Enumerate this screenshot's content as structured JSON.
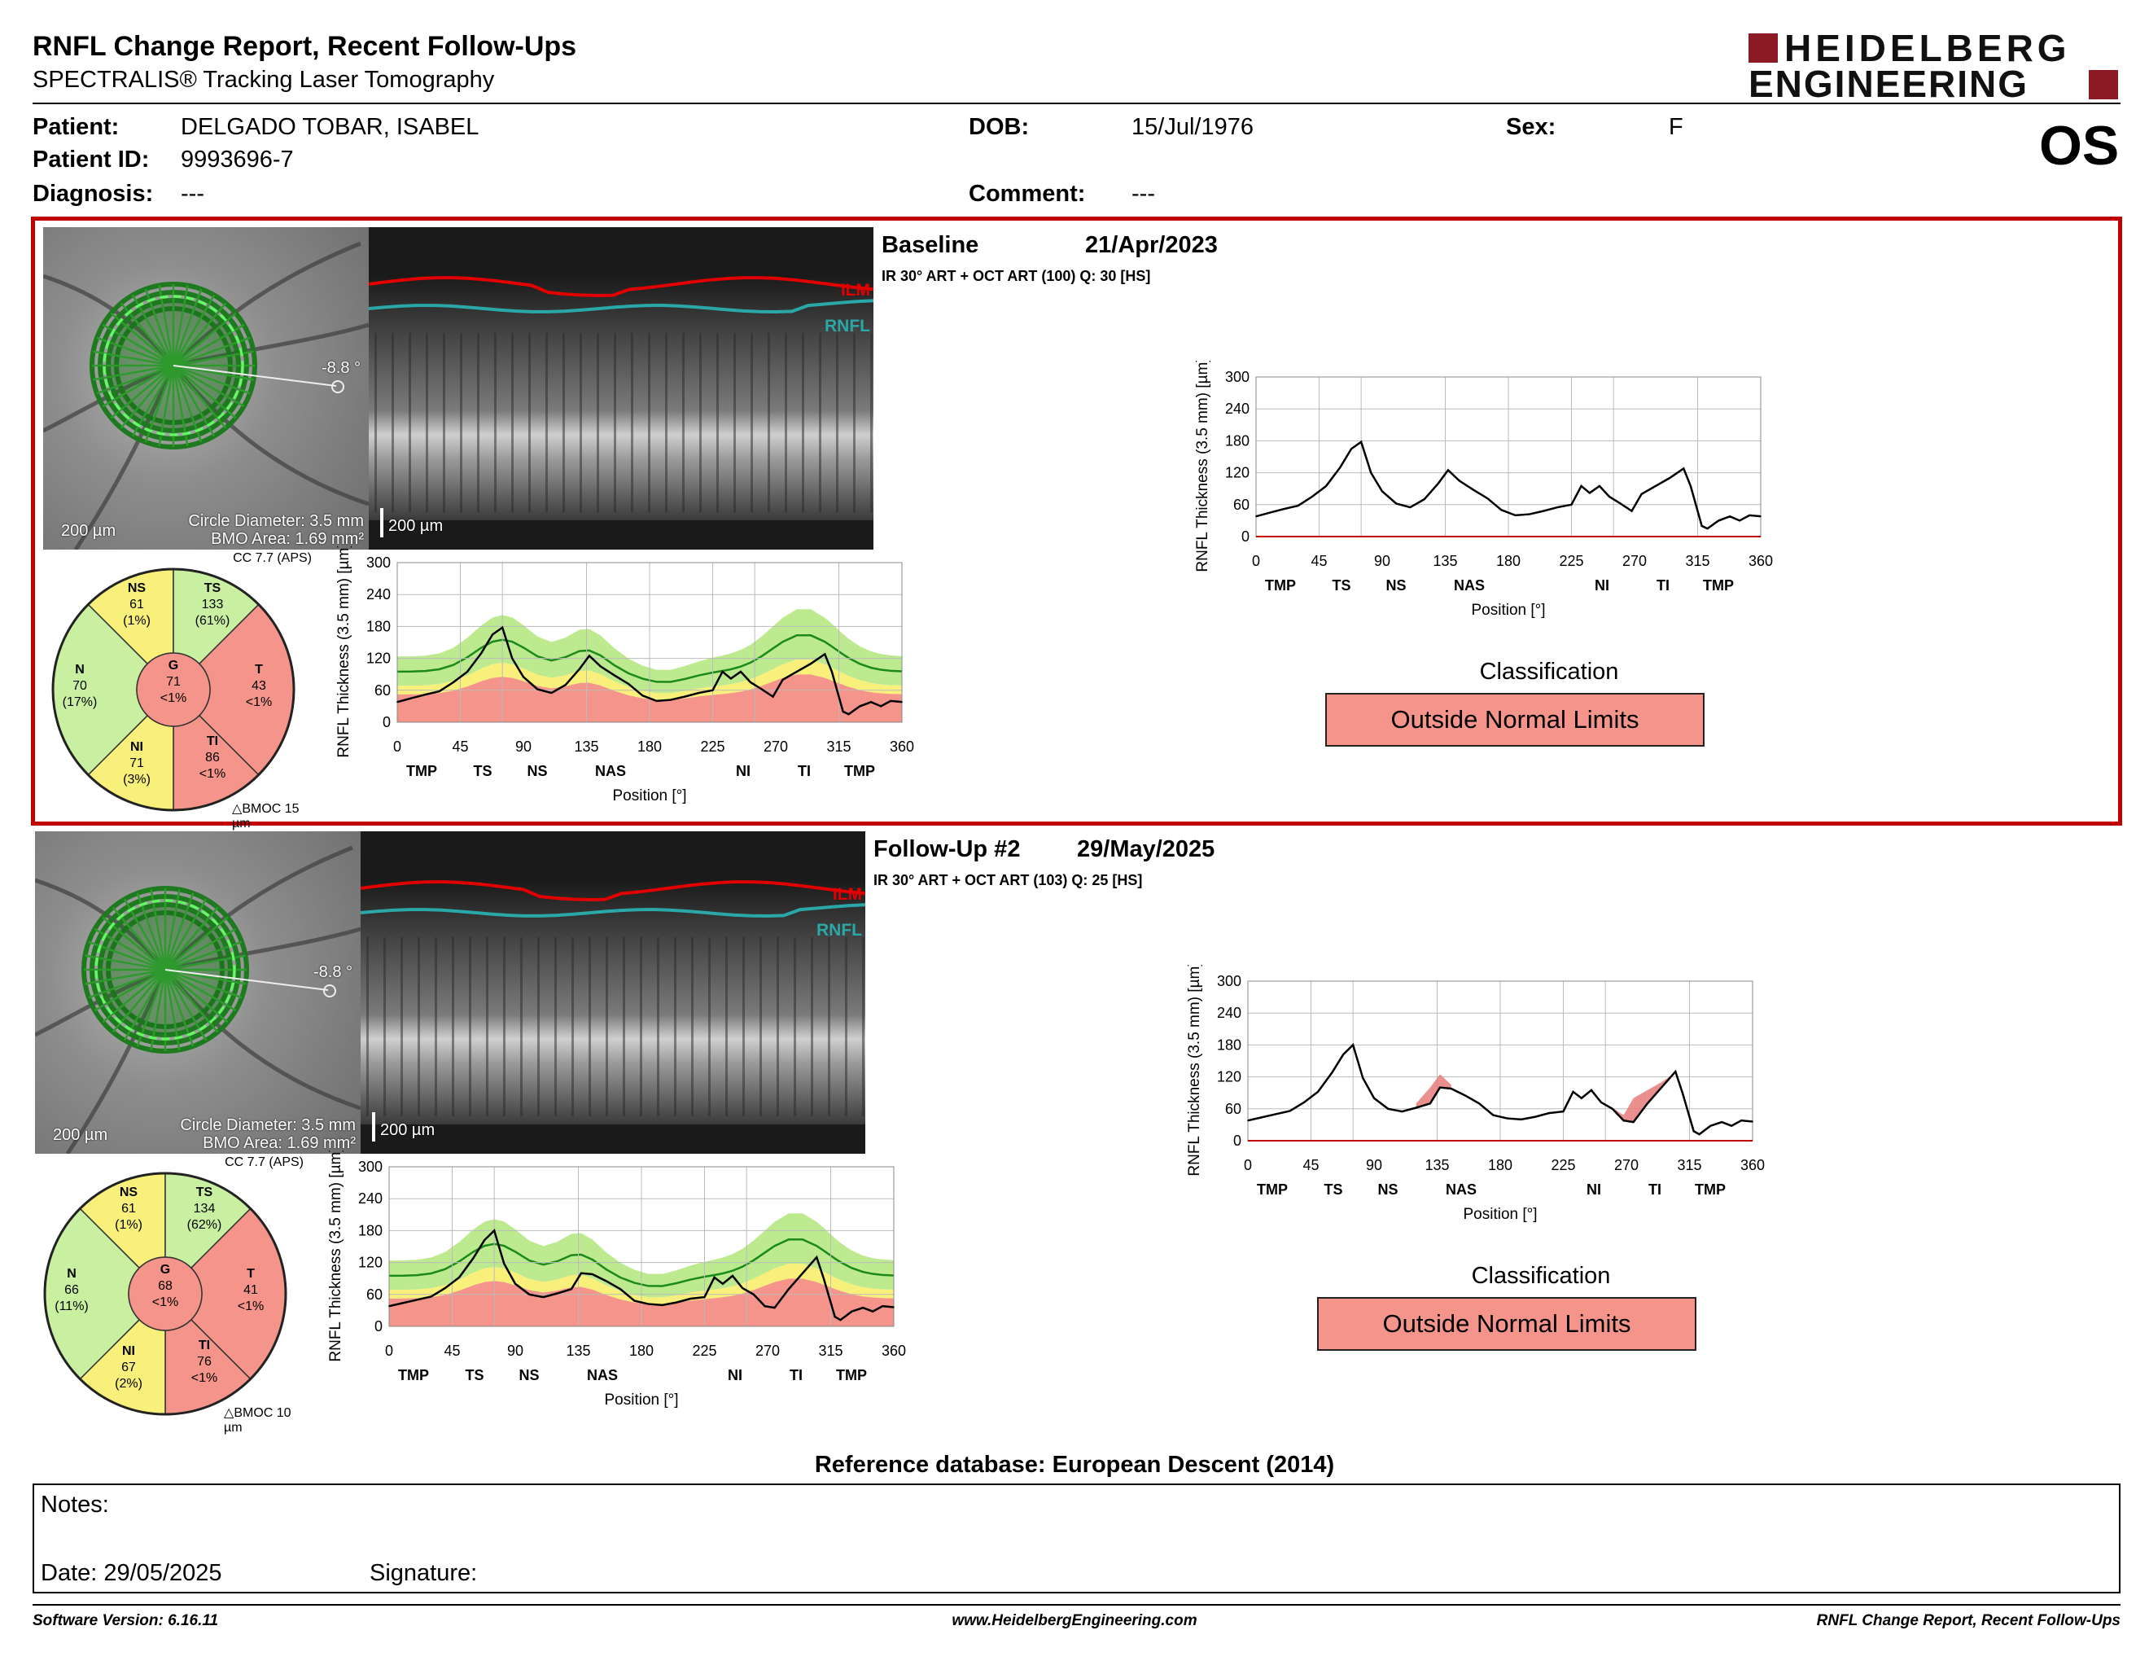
{
  "report": {
    "title": "RNFL Change Report, Recent Follow-Ups",
    "subtitle": "SPECTRALIS® Tracking Laser Tomography",
    "logo_line1": "HEIDELBERG",
    "logo_line2": "ENGINEERING",
    "eye": "OS"
  },
  "patient": {
    "name_label": "Patient:",
    "name": "DELGADO TOBAR, ISABEL",
    "id_label": "Patient ID:",
    "id": "9993696-7",
    "diagnosis_label": "Diagnosis:",
    "diagnosis": "---",
    "dob_label": "DOB:",
    "dob": "15/Jul/1976",
    "comment_label": "Comment:",
    "comment": "---",
    "sex_label": "Sex:",
    "sex": "F"
  },
  "exams": [
    {
      "label": "Baseline",
      "date": "21/Apr/2023",
      "protocol": "IR 30° ART + OCT ART (100) Q: 30 [HS]",
      "angle": "-8.8 °",
      "scale": "200 µm",
      "circle_diameter": "Circle Diameter: 3.5 mm",
      "bmo_area": "BMO Area: 1.69 mm²",
      "cc": "CC 7.7 (APS)",
      "bmoc": "BMOC 15 µm",
      "sectors": {
        "NS": {
          "label": "NS",
          "value": "61",
          "pct": "(1%)"
        },
        "TS": {
          "label": "TS",
          "value": "133",
          "pct": "(61%)"
        },
        "N": {
          "label": "N",
          "value": "70",
          "pct": "(17%)"
        },
        "G": {
          "label": "G",
          "value": "71",
          "pct": "<1%"
        },
        "T": {
          "label": "T",
          "value": "43",
          "pct": "<1%"
        },
        "NI": {
          "label": "NI",
          "value": "71",
          "pct": "(3%)"
        },
        "TI": {
          "label": "TI",
          "value": "86",
          "pct": "<1%"
        }
      },
      "classification_title": "Classification",
      "classification": "Outside Normal Limits"
    },
    {
      "label": "Follow-Up #2",
      "date": "29/May/2025",
      "protocol": "IR 30° ART + OCT ART (103) Q: 25 [HS]",
      "angle": "-8.8 °",
      "scale": "200 µm",
      "circle_diameter": "Circle Diameter: 3.5 mm",
      "bmo_area": "BMO Area: 1.69 mm²",
      "cc": "CC 7.7 (APS)",
      "bmoc": "BMOC 10 µm",
      "sectors": {
        "NS": {
          "label": "NS",
          "value": "61",
          "pct": "(1%)"
        },
        "TS": {
          "label": "TS",
          "value": "134",
          "pct": "(62%)"
        },
        "N": {
          "label": "N",
          "value": "66",
          "pct": "(11%)"
        },
        "G": {
          "label": "G",
          "value": "68",
          "pct": "<1%"
        },
        "T": {
          "label": "T",
          "value": "41",
          "pct": "<1%"
        },
        "NI": {
          "label": "NI",
          "value": "67",
          "pct": "(2%)"
        },
        "TI": {
          "label": "TI",
          "value": "76",
          "pct": "<1%"
        }
      },
      "classification_title": "Classification",
      "classification": "Outside Normal Limits"
    }
  ],
  "oct_labels": {
    "ilm": "ILM",
    "rnfl": "RNFL"
  },
  "chart_data": [
    {
      "type": "line",
      "title": "",
      "xlabel": "Position [°]",
      "ylabel": "RNFL Thickness (3.5 mm) [µm]",
      "xlim": [
        0,
        360
      ],
      "ylim": [
        0,
        300
      ],
      "x_ticks": [
        "0",
        "45",
        "90",
        "135",
        "180",
        "225",
        "270",
        "315",
        "360"
      ],
      "y_ticks": [
        "0",
        "60",
        "120",
        "180",
        "240",
        "300"
      ],
      "sector_labels": [
        "TMP",
        "TS",
        "NS",
        "NAS",
        "NI",
        "TI",
        "TMP"
      ],
      "x": [
        0,
        10,
        20,
        30,
        40,
        50,
        60,
        68,
        75,
        82,
        90,
        100,
        110,
        120,
        130,
        137,
        145,
        155,
        165,
        175,
        185,
        195,
        205,
        215,
        225,
        232,
        238,
        245,
        252,
        260,
        268,
        275,
        285,
        295,
        305,
        310,
        318,
        322,
        330,
        338,
        345,
        352,
        360
      ],
      "series": [
        {
          "values": [
            38,
            45,
            52,
            58,
            75,
            95,
            130,
            165,
            178,
            120,
            85,
            62,
            55,
            70,
            100,
            125,
            105,
            88,
            72,
            50,
            40,
            42,
            48,
            55,
            60,
            95,
            82,
            95,
            75,
            62,
            48,
            80,
            95,
            110,
            128,
            95,
            20,
            15,
            30,
            38,
            30,
            40,
            38
          ]
        }
      ]
    },
    {
      "type": "line",
      "title": "",
      "xlabel": "Position [°]",
      "ylabel": "RNFL Thickness (3.5 mm) [µm]",
      "xlim": [
        0,
        360
      ],
      "ylim": [
        0,
        300
      ],
      "x_ticks": [
        "0",
        "45",
        "90",
        "135",
        "180",
        "225",
        "270",
        "315",
        "360"
      ],
      "y_ticks": [
        "0",
        "60",
        "120",
        "180",
        "240",
        "300"
      ],
      "sector_labels": [
        "TMP",
        "TS",
        "NS",
        "NAS",
        "NI",
        "TI",
        "TMP"
      ],
      "x": [
        0,
        10,
        20,
        30,
        40,
        50,
        60,
        68,
        75,
        82,
        90,
        100,
        110,
        120,
        130,
        137,
        145,
        155,
        165,
        175,
        185,
        195,
        205,
        215,
        225,
        232,
        238,
        245,
        252,
        260,
        268,
        275,
        285,
        295,
        305,
        310,
        318,
        322,
        330,
        338,
        345,
        352,
        360
      ],
      "series": [
        {
          "values": [
            38,
            44,
            50,
            56,
            72,
            92,
            128,
            162,
            180,
            118,
            80,
            60,
            55,
            62,
            70,
            100,
            98,
            85,
            70,
            48,
            42,
            40,
            45,
            52,
            55,
            92,
            80,
            95,
            72,
            60,
            38,
            35,
            70,
            100,
            130,
            90,
            18,
            12,
            28,
            35,
            28,
            38,
            36
          ]
        }
      ]
    }
  ],
  "footer": {
    "reference": "Reference database: European Descent (2014)",
    "notes_label": "Notes:",
    "date_label": "Date: 29/05/2025",
    "signature_label": "Signature:",
    "software": "Software Version: 6.16.11",
    "website": "www.HeidelbergEngineering.com",
    "report_name": "RNFL Change Report, Recent Follow-Ups"
  },
  "colors": {
    "frame_red": "#c00000",
    "normal_green": "#c8f0a0",
    "borderline_yellow": "#f8f07a",
    "outside_red": "#f4948a"
  }
}
